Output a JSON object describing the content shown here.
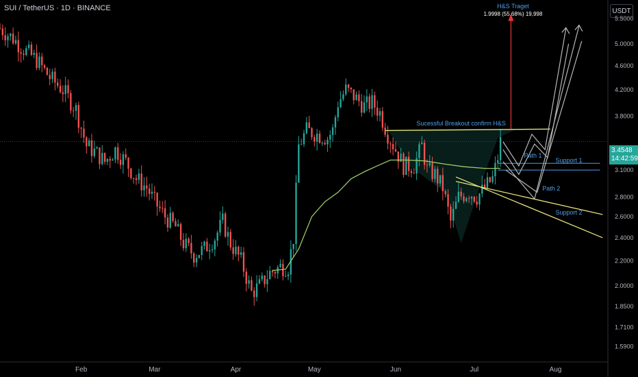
{
  "header": {
    "title": "SUI / TetherUS · 1D · BINANCE"
  },
  "price_axis": {
    "unit": "USDT"
  },
  "last_price": {
    "value": "3.4548",
    "countdown": "14:42:59"
  },
  "colors": {
    "up": "#26a69a",
    "down": "#ef5350",
    "ma": "#9ccc65",
    "trend": "#e6e37a",
    "target": "#e53935",
    "label": "#4f9fea",
    "path": "#b8b8b8"
  },
  "annotations": {
    "target_title": "H&S Traget",
    "target_sub": "1.9998 (55.68%) 19,998",
    "breakout": "Sucessful Breakout confirm H&S",
    "path1": "Path 1",
    "path2": "Path 2",
    "support1": "Support 1",
    "support2": "Support 2"
  },
  "chart_data": {
    "type": "line",
    "title": "SUI / TetherUS · 1D · BINANCE",
    "y_scale": "log",
    "ylim": [
      1.5,
      5.9
    ],
    "y_ticks": [
      "5.5000",
      "5.0000",
      "4.6000",
      "4.2000",
      "3.8000",
      "3.4548",
      "3.1000",
      "2.8000",
      "2.6000",
      "2.4000",
      "2.2000",
      "2.0000",
      "1.8500",
      "1.7100",
      "1.5900"
    ],
    "y_tick_values": [
      5.5,
      5.0,
      4.6,
      4.2,
      3.8,
      3.4548,
      3.1,
      2.8,
      2.6,
      2.4,
      2.2,
      2.0,
      1.85,
      1.71,
      1.59
    ],
    "x_ticks": [
      "Feb",
      "Mar",
      "Apr",
      "May",
      "Jun",
      "Jul",
      "Aug"
    ],
    "x_tick_dates": [
      "2025-02-01",
      "2025-03-01",
      "2025-04-01",
      "2025-05-01",
      "2025-06-01",
      "2025-07-01",
      "2025-08-01"
    ],
    "xlim": [
      "2025-01-01",
      "2025-08-21"
    ],
    "price_anchors": [
      [
        "2025-01-01",
        5.3
      ],
      [
        "2025-01-06",
        5.1
      ],
      [
        "2025-01-10",
        4.9
      ],
      [
        "2025-01-15",
        4.7
      ],
      [
        "2025-01-20",
        4.4
      ],
      [
        "2025-01-25",
        4.2
      ],
      [
        "2025-01-30",
        3.9
      ],
      [
        "2025-02-03",
        3.4
      ],
      [
        "2025-02-07",
        3.3
      ],
      [
        "2025-02-10",
        3.2
      ],
      [
        "2025-02-14",
        3.35
      ],
      [
        "2025-02-18",
        3.2
      ],
      [
        "2025-02-22",
        3.0
      ],
      [
        "2025-02-26",
        2.9
      ],
      [
        "2025-03-01",
        2.75
      ],
      [
        "2025-03-05",
        2.6
      ],
      [
        "2025-03-09",
        2.5
      ],
      [
        "2025-03-12",
        2.35
      ],
      [
        "2025-03-16",
        2.25
      ],
      [
        "2025-03-20",
        2.3
      ],
      [
        "2025-03-24",
        2.4
      ],
      [
        "2025-03-27",
        2.55
      ],
      [
        "2025-03-30",
        2.35
      ],
      [
        "2025-04-03",
        2.2
      ],
      [
        "2025-04-07",
        1.95
      ],
      [
        "2025-04-10",
        2.0
      ],
      [
        "2025-04-14",
        2.1
      ],
      [
        "2025-04-18",
        2.15
      ],
      [
        "2025-04-21",
        2.15
      ],
      [
        "2025-04-23",
        2.4
      ],
      [
        "2025-04-25",
        3.4
      ],
      [
        "2025-04-28",
        3.6
      ],
      [
        "2025-05-02",
        3.55
      ],
      [
        "2025-05-06",
        3.5
      ],
      [
        "2025-05-08",
        3.6
      ],
      [
        "2025-05-10",
        4.0
      ],
      [
        "2025-05-13",
        4.2
      ],
      [
        "2025-05-16",
        4.1
      ],
      [
        "2025-05-20",
        3.95
      ],
      [
        "2025-05-23",
        4.0
      ],
      [
        "2025-05-26",
        3.85
      ],
      [
        "2025-05-29",
        3.55
      ],
      [
        "2025-06-01",
        3.35
      ],
      [
        "2025-06-04",
        3.15
      ],
      [
        "2025-06-08",
        3.15
      ],
      [
        "2025-06-11",
        3.4
      ],
      [
        "2025-06-13",
        3.1
      ],
      [
        "2025-06-16",
        3.05
      ],
      [
        "2025-06-19",
        2.9
      ],
      [
        "2025-06-22",
        2.55
      ],
      [
        "2025-06-25",
        2.8
      ],
      [
        "2025-06-29",
        2.85
      ],
      [
        "2025-07-02",
        2.8
      ],
      [
        "2025-07-05",
        2.9
      ],
      [
        "2025-07-08",
        3.0
      ],
      [
        "2025-07-10",
        3.25
      ],
      [
        "2025-07-11",
        3.45
      ]
    ],
    "ma_anchors": [
      [
        "2025-04-15",
        2.12
      ],
      [
        "2025-04-20",
        2.13
      ],
      [
        "2025-04-25",
        2.3
      ],
      [
        "2025-04-30",
        2.6
      ],
      [
        "2025-05-05",
        2.75
      ],
      [
        "2025-05-10",
        2.85
      ],
      [
        "2025-05-15",
        3.0
      ],
      [
        "2025-05-20",
        3.08
      ],
      [
        "2025-05-25",
        3.15
      ],
      [
        "2025-05-30",
        3.22
      ],
      [
        "2025-06-05",
        3.22
      ],
      [
        "2025-06-12",
        3.21
      ],
      [
        "2025-06-20",
        3.17
      ],
      [
        "2025-06-27",
        3.14
      ],
      [
        "2025-07-05",
        3.12
      ],
      [
        "2025-07-11",
        3.12
      ]
    ]
  }
}
